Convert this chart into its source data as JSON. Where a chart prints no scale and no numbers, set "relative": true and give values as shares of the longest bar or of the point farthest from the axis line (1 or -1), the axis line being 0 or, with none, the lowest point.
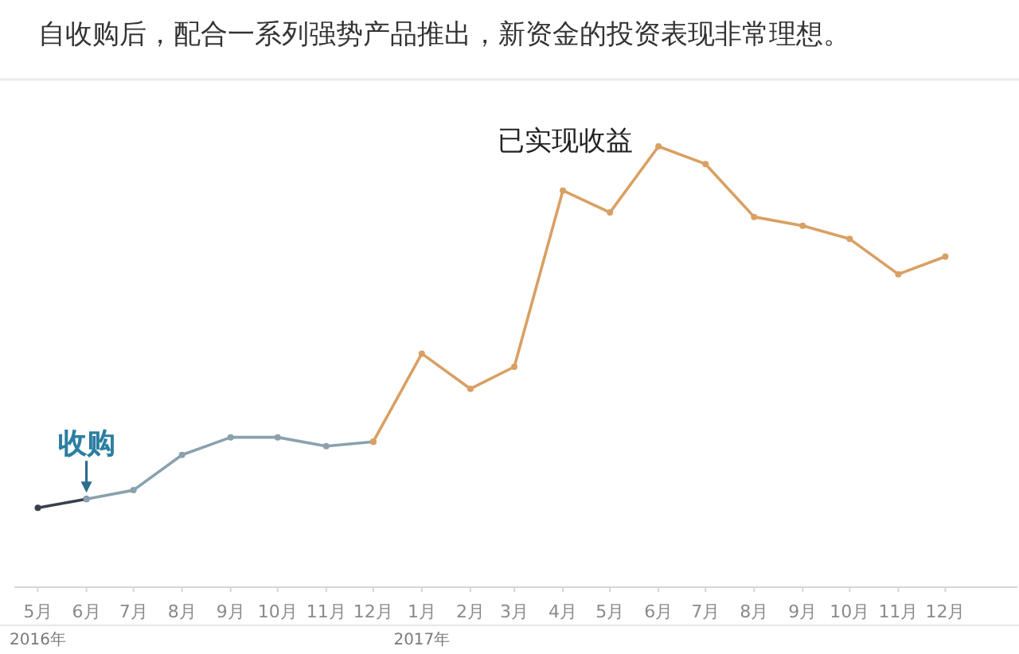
{
  "chart_data": {
    "type": "line",
    "title": "自收购后，配合一系列强势产品推出，新资金的投资表现非常理想。",
    "relative": true,
    "marker": "circle",
    "line_style": "solid",
    "x": [
      "2016-05",
      "2016-06",
      "2016-07",
      "2016-08",
      "2016-09",
      "2016-10",
      "2016-11",
      "2016-12",
      "2017-01",
      "2017-02",
      "2017-03",
      "2017-04",
      "2017-05",
      "2017-06",
      "2017-07",
      "2017-08",
      "2017-09",
      "2017-10",
      "2017-11",
      "2017-12"
    ],
    "xlim": [
      "2016-04-16",
      "2018-01-16"
    ],
    "xticks": [
      {
        "value": "2016-05",
        "label": "5月\n2016年"
      },
      {
        "value": "2016-06",
        "label": "6月"
      },
      {
        "value": "2016-07",
        "label": "7月"
      },
      {
        "value": "2016-08",
        "label": "8月"
      },
      {
        "value": "2016-09",
        "label": "9月"
      },
      {
        "value": "2016-10",
        "label": "10月"
      },
      {
        "value": "2016-11",
        "label": "11月"
      },
      {
        "value": "2016-12",
        "label": "12月"
      },
      {
        "value": "2017-01",
        "label": "1月\n2017年"
      },
      {
        "value": "2017-02",
        "label": "2月"
      },
      {
        "value": "2017-03",
        "label": "3月"
      },
      {
        "value": "2017-04",
        "label": "4月"
      },
      {
        "value": "2017-05",
        "label": "5月"
      },
      {
        "value": "2017-06",
        "label": "6月"
      },
      {
        "value": "2017-07",
        "label": "7月"
      },
      {
        "value": "2017-08",
        "label": "8月"
      },
      {
        "value": "2017-09",
        "label": "9月"
      },
      {
        "value": "2017-10",
        "label": "10月"
      },
      {
        "value": "2017-11",
        "label": "11月"
      },
      {
        "value": "2017-12",
        "label": "12月"
      }
    ],
    "series": [
      {
        "color": "#38404c",
        "values": [
          0.18,
          0.2,
          null,
          null,
          null,
          null,
          null,
          null,
          null,
          null,
          null,
          null,
          null,
          null,
          null,
          null,
          null,
          null,
          null,
          null
        ]
      },
      {
        "color": "#8aa1ae",
        "values": [
          null,
          0.2,
          0.22,
          0.3,
          0.34,
          0.34,
          0.32,
          0.33,
          null,
          null,
          null,
          null,
          null,
          null,
          null,
          null,
          null,
          null,
          null,
          null
        ]
      },
      {
        "name": "已实现收益",
        "color": "#d9a063",
        "values": [
          null,
          null,
          null,
          null,
          null,
          null,
          null,
          0.33,
          0.53,
          0.45,
          0.5,
          0.9,
          0.85,
          1,
          0.96,
          0.84,
          0.82,
          0.79,
          0.71,
          0.75
        ]
      }
    ],
    "annotations": [
      {
        "text": "收购",
        "x": "2016-06",
        "y": 0.2
      }
    ]
  }
}
